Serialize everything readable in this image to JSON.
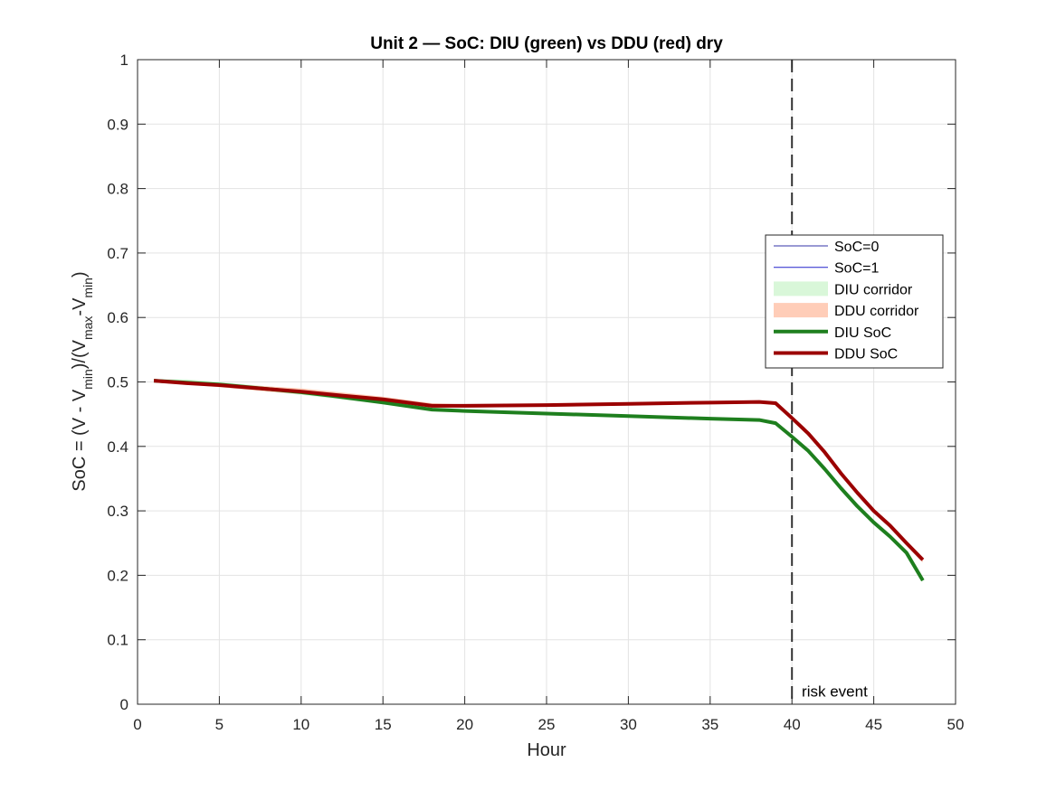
{
  "chart_data": {
    "type": "line",
    "title": "Unit 2 — SoC: DIU (green) vs DDU (red) dry",
    "xlabel": "Hour",
    "ylabel": {
      "prefix": "SoC = (V - V",
      "sub1": "min",
      "mid": ")/(V",
      "sub2": "max",
      "mid2": "-V",
      "sub3": "min",
      "suffix": ")"
    },
    "xlim": [
      0,
      50
    ],
    "ylim": [
      0,
      1
    ],
    "xticks": [
      0,
      5,
      10,
      15,
      20,
      25,
      30,
      35,
      40,
      45,
      50
    ],
    "yticks": [
      0,
      0.1,
      0.2,
      0.3,
      0.4,
      0.5,
      0.6,
      0.7,
      0.8,
      0.9,
      1
    ],
    "grid": true,
    "legend_position": "right",
    "series": [
      {
        "name": "SoC=0",
        "kind": "hline",
        "y": 0,
        "color": "#3333aa"
      },
      {
        "name": "SoC=1",
        "kind": "hline",
        "y": 1,
        "color": "#2222cc"
      },
      {
        "name": "DIU corridor",
        "kind": "band",
        "color": "#d9f7d9",
        "x": [
          1,
          3,
          5,
          8,
          10,
          12,
          15,
          18,
          20,
          25,
          30,
          35,
          38,
          39,
          40,
          41,
          42,
          43,
          44,
          45,
          46,
          47,
          48
        ],
        "lower": [
          0.5,
          0.497,
          0.492,
          0.485,
          0.48,
          0.474,
          0.466,
          0.455,
          0.453,
          0.449,
          0.445,
          0.441,
          0.439,
          0.434,
          0.412,
          0.39,
          0.363,
          0.333,
          0.305,
          0.28,
          0.258,
          0.233,
          0.19
        ],
        "upper": [
          0.504,
          0.504,
          0.5,
          0.493,
          0.488,
          0.481,
          0.47,
          0.46,
          0.458,
          0.453,
          0.449,
          0.445,
          0.443,
          0.439,
          0.418,
          0.396,
          0.368,
          0.337,
          0.309,
          0.284,
          0.262,
          0.237,
          0.194
        ]
      },
      {
        "name": "DDU corridor",
        "kind": "band",
        "color": "#ffcdb8",
        "x": [
          1,
          3,
          5,
          8,
          10,
          12,
          15,
          18,
          20,
          25,
          30,
          35,
          38,
          39,
          40,
          41,
          42,
          43,
          44,
          45,
          46,
          47,
          48
        ],
        "lower": [
          0.5,
          0.496,
          0.492,
          0.485,
          0.481,
          0.476,
          0.469,
          0.46,
          0.46,
          0.462,
          0.464,
          0.466,
          0.467,
          0.464,
          0.44,
          0.416,
          0.388,
          0.355,
          0.325,
          0.297,
          0.274,
          0.247,
          0.22
        ],
        "upper": [
          0.503,
          0.501,
          0.498,
          0.493,
          0.49,
          0.485,
          0.477,
          0.467,
          0.465,
          0.466,
          0.468,
          0.47,
          0.471,
          0.469,
          0.447,
          0.423,
          0.394,
          0.361,
          0.331,
          0.303,
          0.279,
          0.252,
          0.226
        ]
      },
      {
        "name": "DIU SoC",
        "kind": "line",
        "color": "#1e7f1e",
        "x": [
          1,
          3,
          5,
          8,
          10,
          12,
          15,
          18,
          20,
          25,
          30,
          35,
          38,
          39,
          40,
          41,
          42,
          43,
          44,
          45,
          46,
          47,
          48
        ],
        "y": [
          0.502,
          0.499,
          0.496,
          0.489,
          0.484,
          0.478,
          0.468,
          0.457,
          0.455,
          0.451,
          0.447,
          0.443,
          0.441,
          0.436,
          0.415,
          0.393,
          0.365,
          0.335,
          0.307,
          0.282,
          0.26,
          0.235,
          0.192
        ]
      },
      {
        "name": "DDU SoC",
        "kind": "line",
        "color": "#9b0000",
        "x": [
          1,
          3,
          5,
          8,
          10,
          12,
          15,
          18,
          20,
          25,
          30,
          35,
          38,
          39,
          40,
          41,
          42,
          43,
          44,
          45,
          46,
          47,
          48
        ],
        "y": [
          0.502,
          0.498,
          0.495,
          0.489,
          0.485,
          0.48,
          0.473,
          0.463,
          0.463,
          0.464,
          0.466,
          0.468,
          0.469,
          0.467,
          0.444,
          0.42,
          0.391,
          0.358,
          0.328,
          0.3,
          0.277,
          0.25,
          0.224
        ]
      }
    ],
    "vline": {
      "x": 40,
      "style": "dashed",
      "color": "#333333"
    },
    "annotation": {
      "text": "risk event",
      "x": 40.6,
      "y": 0.012
    }
  }
}
